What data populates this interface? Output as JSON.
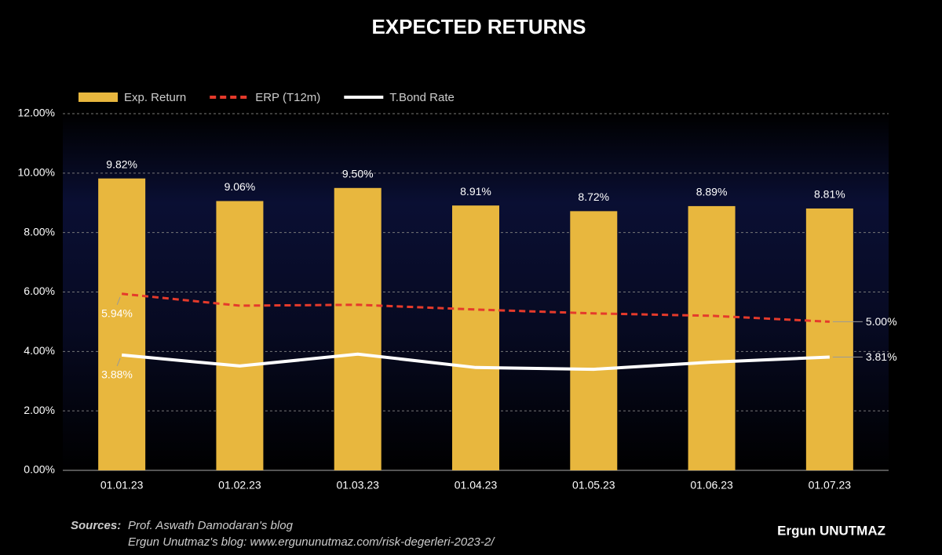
{
  "chart_data": {
    "type": "bar_line",
    "title": "EXPECTED RETURNS",
    "categories": [
      "01.01.23",
      "01.02.23",
      "01.03.23",
      "01.04.23",
      "01.05.23",
      "01.06.23",
      "01.07.23"
    ],
    "series": [
      {
        "name": "Exp. Return",
        "type": "bar",
        "color": "#e8b73e",
        "values": [
          9.82,
          9.06,
          9.5,
          8.91,
          8.72,
          8.89,
          8.81
        ],
        "value_labels": [
          "9.82%",
          "9.06%",
          "9.50%",
          "8.91%",
          "8.72%",
          "8.89%",
          "8.81%"
        ]
      },
      {
        "name": "ERP (T12m)",
        "type": "line",
        "dashed": true,
        "color": "#e53a2b",
        "values": [
          5.94,
          5.54,
          5.57,
          5.41,
          5.28,
          5.2,
          5.0
        ],
        "value_labels": [
          "5.94%",
          null,
          null,
          null,
          null,
          null,
          "5.00%"
        ]
      },
      {
        "name": "T.Bond Rate",
        "type": "line",
        "dashed": false,
        "color": "#ffffff",
        "values": [
          3.88,
          3.51,
          3.91,
          3.46,
          3.4,
          3.64,
          3.81
        ],
        "value_labels": [
          "3.88%",
          null,
          null,
          null,
          null,
          null,
          "3.81%"
        ]
      }
    ],
    "ylim": [
      0,
      12
    ],
    "yticks": [
      {
        "value": 0,
        "label": "0.00%"
      },
      {
        "value": 2,
        "label": "2.00%"
      },
      {
        "value": 4,
        "label": "4.00%"
      },
      {
        "value": 6,
        "label": "6.00%"
      },
      {
        "value": 8,
        "label": "8.00%"
      },
      {
        "value": 10,
        "label": "10.00%"
      },
      {
        "value": 12,
        "label": "12.00%"
      }
    ],
    "grid": true,
    "legend": "top-left",
    "source_label": "Sources:",
    "sources": [
      "Prof. Aswath Damodaran's blog",
      "Ergun Unutmaz's blog: www.ergununutmaz.com/risk-degerleri-2023-2/"
    ],
    "credit": "Ergun UNUTMAZ"
  }
}
